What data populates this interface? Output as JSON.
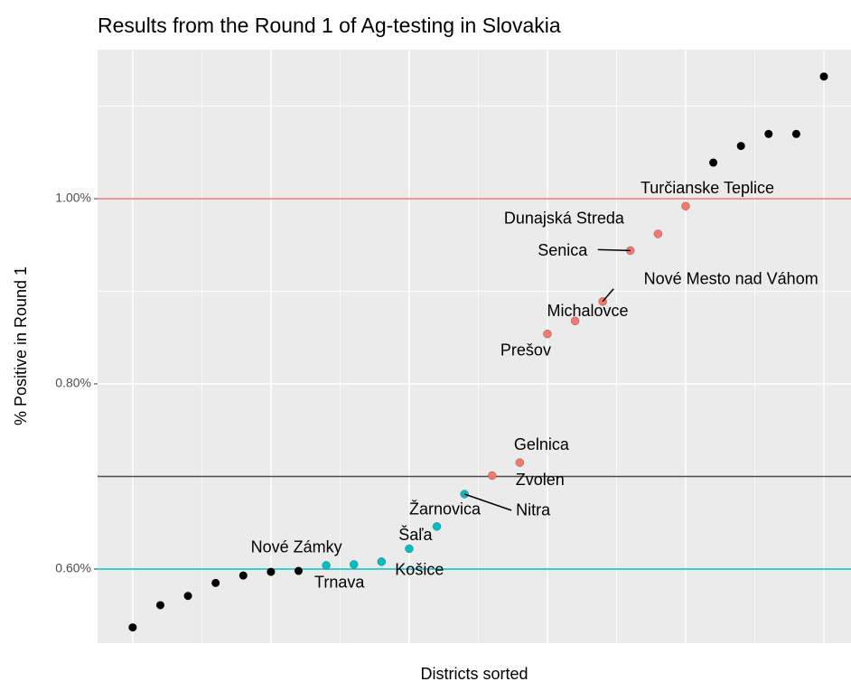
{
  "chart_data": {
    "type": "scatter",
    "title": "Results from the Round 1 of Ag-testing in Slovakia",
    "x_label": "Districts sorted",
    "y_label": "% Positive in Round 1",
    "x": [
      1,
      2,
      3,
      4,
      5,
      6,
      7,
      8,
      9,
      10,
      11,
      12,
      13,
      14,
      15,
      16,
      17,
      18,
      19,
      20,
      21,
      22,
      23,
      24,
      25,
      26
    ],
    "values": [
      0.537,
      0.561,
      0.571,
      0.585,
      0.593,
      0.597,
      0.598,
      0.604,
      0.605,
      0.608,
      0.622,
      0.646,
      0.681,
      0.701,
      0.715,
      0.854,
      0.868,
      0.889,
      0.944,
      0.962,
      0.992,
      1.039,
      1.057,
      1.07,
      1.07,
      1.132
    ],
    "colors": [
      "#000000",
      "#000000",
      "#000000",
      "#000000",
      "#000000",
      "#000000",
      "#000000",
      "#00BFC4",
      "#00BFC4",
      "#00BFC4",
      "#00BFC4",
      "#00BFC4",
      "#00BFC4",
      "#F8766D",
      "#F8766D",
      "#F8766D",
      "#F8766D",
      "#F8766D",
      "#F8766D",
      "#F8766D",
      "#F8766D",
      "#000000",
      "#000000",
      "#000000",
      "#000000",
      "#000000"
    ],
    "labels": [
      null,
      null,
      null,
      null,
      null,
      null,
      null,
      "Nové Zámky",
      "Trnava",
      "Košice",
      "Šaľa",
      "Žarnovica",
      "Nitra",
      "Zvolen",
      "Gelnica",
      "Prešov",
      "Michalovce",
      "Nové Mesto nad Váhom",
      "Senica",
      "Dunajská Streda",
      "Turčianske Teplice",
      null,
      null,
      null,
      null,
      null
    ],
    "hlines": [
      {
        "value": 1.0,
        "color": "#F8766D"
      },
      {
        "value": 0.7,
        "color": "#4d4d4d"
      },
      {
        "value": 0.6,
        "color": "#00BFC4"
      }
    ],
    "xlim": [
      -0.27,
      26.98
    ],
    "ylim": [
      0.52,
      1.161
    ],
    "xticks": [
      1,
      6,
      11,
      16,
      21,
      26
    ],
    "xminor": [
      3.5,
      8.5,
      13.5,
      18.5,
      23.5
    ],
    "yticks": [
      {
        "value": 0.6,
        "label": "0.60%"
      },
      {
        "value": 0.8,
        "label": "0.80%"
      },
      {
        "value": 1.0,
        "label": "1.00%"
      }
    ],
    "yminor": [
      0.7,
      0.9,
      1.1
    ],
    "grid": true
  }
}
